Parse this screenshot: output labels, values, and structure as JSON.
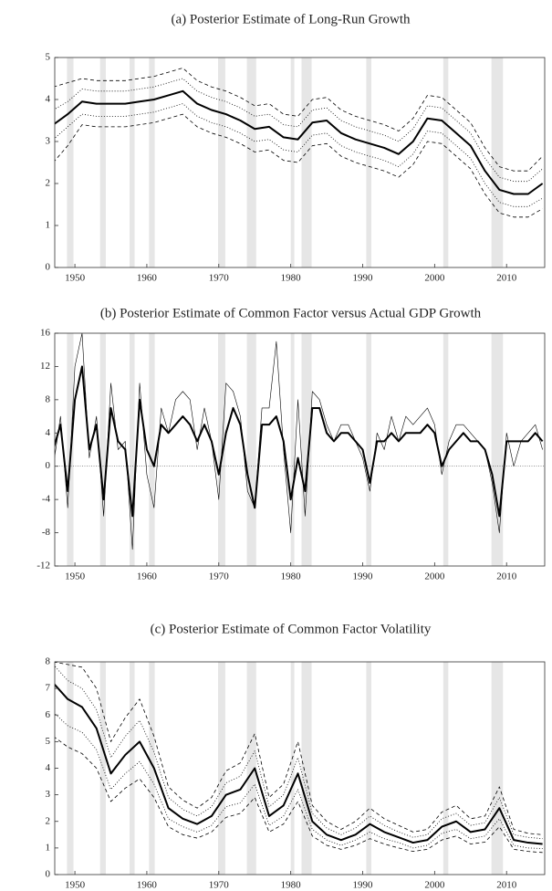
{
  "chart_data": [
    {
      "type": "line",
      "title": "(a) Posterior Estimate of Long-Run Growth",
      "x": [
        1947,
        1949,
        1951,
        1953,
        1955,
        1957,
        1959,
        1961,
        1963,
        1965,
        1967,
        1969,
        1971,
        1973,
        1975,
        1977,
        1979,
        1981,
        1983,
        1985,
        1987,
        1989,
        1991,
        1993,
        1995,
        1997,
        1999,
        2001,
        2003,
        2005,
        2007,
        2009,
        2011,
        2013,
        2015
      ],
      "xlim": [
        1947.2,
        2015.3
      ],
      "xticks": [
        1950,
        1960,
        1970,
        1980,
        1990,
        2000,
        2010
      ],
      "ylim": [
        0,
        5
      ],
      "yticks": [
        0,
        1,
        2,
        3,
        4,
        5
      ],
      "shaded_periods": [
        [
          1948.9,
          1949.8
        ],
        [
          1953.5,
          1954.3
        ],
        [
          1957.6,
          1958.3
        ],
        [
          1960.3,
          1961.1
        ],
        [
          1969.9,
          1970.9
        ],
        [
          1973.9,
          1975.2
        ],
        [
          1980.0,
          1980.5
        ],
        [
          1981.5,
          1982.9
        ],
        [
          1990.5,
          1991.2
        ],
        [
          2001.2,
          2001.9
        ],
        [
          2007.9,
          2009.5
        ]
      ],
      "shade_color": "#e6e6e6",
      "series": [
        {
          "color": "#000000",
          "style": "dashed",
          "width": 0.8,
          "values": [
            4.3,
            4.4,
            4.5,
            4.45,
            4.45,
            4.45,
            4.5,
            4.55,
            4.65,
            4.75,
            4.45,
            4.3,
            4.2,
            4.05,
            3.85,
            3.9,
            3.65,
            3.6,
            4.0,
            4.05,
            3.75,
            3.6,
            3.5,
            3.4,
            3.25,
            3.55,
            4.1,
            4.05,
            3.75,
            3.45,
            2.85,
            2.4,
            2.3,
            2.3,
            2.65
          ]
        },
        {
          "color": "#000000",
          "style": "dotted",
          "width": 0.8,
          "values": [
            3.75,
            3.95,
            4.25,
            4.2,
            4.2,
            4.2,
            4.25,
            4.3,
            4.4,
            4.5,
            4.2,
            4.05,
            3.95,
            3.8,
            3.6,
            3.65,
            3.4,
            3.35,
            3.75,
            3.8,
            3.5,
            3.35,
            3.25,
            3.15,
            3.0,
            3.3,
            3.85,
            3.8,
            3.5,
            3.2,
            2.6,
            2.15,
            2.05,
            2.05,
            2.35
          ]
        },
        {
          "color": "#000000",
          "style": "solid",
          "width": 2,
          "values": [
            3.4,
            3.65,
            3.95,
            3.9,
            3.9,
            3.9,
            3.95,
            4.0,
            4.1,
            4.2,
            3.9,
            3.75,
            3.65,
            3.5,
            3.3,
            3.35,
            3.1,
            3.05,
            3.45,
            3.5,
            3.2,
            3.05,
            2.95,
            2.85,
            2.7,
            3.0,
            3.55,
            3.5,
            3.2,
            2.9,
            2.3,
            1.85,
            1.75,
            1.75,
            2.0
          ]
        },
        {
          "color": "#000000",
          "style": "dotted",
          "width": 0.8,
          "values": [
            3.05,
            3.35,
            3.65,
            3.6,
            3.6,
            3.6,
            3.65,
            3.7,
            3.8,
            3.9,
            3.6,
            3.45,
            3.35,
            3.2,
            3.0,
            3.05,
            2.8,
            2.75,
            3.15,
            3.2,
            2.9,
            2.75,
            2.65,
            2.55,
            2.4,
            2.7,
            3.25,
            3.2,
            2.9,
            2.6,
            2.0,
            1.55,
            1.45,
            1.45,
            1.65
          ]
        },
        {
          "color": "#000000",
          "style": "dashed",
          "width": 0.8,
          "values": [
            2.5,
            2.9,
            3.4,
            3.35,
            3.35,
            3.35,
            3.4,
            3.45,
            3.55,
            3.65,
            3.35,
            3.2,
            3.1,
            2.95,
            2.75,
            2.8,
            2.55,
            2.5,
            2.9,
            2.95,
            2.65,
            2.5,
            2.4,
            2.3,
            2.15,
            2.45,
            3.0,
            2.95,
            2.65,
            2.35,
            1.75,
            1.3,
            1.2,
            1.2,
            1.4
          ]
        }
      ]
    },
    {
      "type": "line",
      "title": "(b) Posterior Estimate of Common Factor versus Actual GDP Growth",
      "x": [
        1947,
        1948,
        1949,
        1950,
        1951,
        1952,
        1953,
        1954,
        1955,
        1956,
        1957,
        1958,
        1959,
        1960,
        1961,
        1962,
        1963,
        1964,
        1965,
        1966,
        1967,
        1968,
        1969,
        1970,
        1971,
        1972,
        1973,
        1974,
        1975,
        1976,
        1977,
        1978,
        1979,
        1980,
        1981,
        1982,
        1983,
        1984,
        1985,
        1986,
        1987,
        1988,
        1989,
        1990,
        1991,
        1992,
        1993,
        1994,
        1995,
        1996,
        1997,
        1998,
        1999,
        2000,
        2001,
        2002,
        2003,
        2004,
        2005,
        2006,
        2007,
        2008,
        2009,
        2010,
        2011,
        2012,
        2013,
        2014,
        2015
      ],
      "xlim": [
        1947.2,
        2015.3
      ],
      "xticks": [
        1950,
        1960,
        1970,
        1980,
        1990,
        2000,
        2010
      ],
      "ylim": [
        -12,
        16
      ],
      "yticks": [
        -12,
        -8,
        -4,
        0,
        4,
        8,
        12,
        16
      ],
      "zero_line": true,
      "shaded_periods": [
        [
          1948.9,
          1949.8
        ],
        [
          1953.5,
          1954.3
        ],
        [
          1957.6,
          1958.3
        ],
        [
          1960.3,
          1961.1
        ],
        [
          1969.9,
          1970.9
        ],
        [
          1973.9,
          1975.2
        ],
        [
          1980.0,
          1980.5
        ],
        [
          1981.5,
          1982.9
        ],
        [
          1990.5,
          1991.2
        ],
        [
          2001.2,
          2001.9
        ],
        [
          2007.9,
          2009.5
        ]
      ],
      "shade_color": "#e6e6e6",
      "series": [
        {
          "color": "#000000",
          "style": "solid",
          "width": 0.6,
          "values": [
            0,
            6,
            -5,
            12,
            16,
            1,
            6,
            -6,
            10,
            2,
            3,
            -10,
            10,
            -1,
            -5,
            7,
            4,
            8,
            9,
            8,
            2,
            7,
            3,
            -4,
            10,
            9,
            6,
            -3,
            -5,
            7,
            7,
            15,
            2,
            -8,
            8,
            -6,
            9,
            8,
            5,
            3,
            5,
            5,
            3,
            1,
            -3,
            4,
            2,
            6,
            3,
            6,
            5,
            6,
            7,
            5,
            -1,
            3,
            5,
            5,
            4,
            3,
            2,
            -2,
            -8,
            4,
            0,
            3,
            4,
            5,
            2
          ]
        },
        {
          "color": "#000000",
          "style": "solid",
          "width": 2,
          "values": [
            2,
            5,
            -3,
            8,
            12,
            2,
            5,
            -4,
            7,
            3,
            2,
            -6,
            8,
            2,
            0,
            5,
            4,
            5,
            6,
            5,
            3,
            5,
            3,
            -1,
            4,
            7,
            5,
            -1,
            -5,
            5,
            5,
            6,
            3,
            -4,
            1,
            -3,
            7,
            7,
            4,
            3,
            4,
            4,
            3,
            2,
            -2,
            3,
            3,
            4,
            3,
            4,
            4,
            4,
            5,
            4,
            0,
            2,
            3,
            4,
            3,
            3,
            2,
            -1,
            -6,
            3,
            3,
            3,
            3,
            4,
            3
          ]
        }
      ]
    },
    {
      "type": "line",
      "title": "(c) Posterior Estimate of Common Factor Volatility",
      "x": [
        1947,
        1949,
        1951,
        1953,
        1955,
        1957,
        1959,
        1961,
        1963,
        1965,
        1967,
        1969,
        1971,
        1973,
        1975,
        1977,
        1979,
        1981,
        1983,
        1985,
        1987,
        1989,
        1991,
        1993,
        1995,
        1997,
        1999,
        2001,
        2003,
        2005,
        2007,
        2009,
        2011,
        2013,
        2015
      ],
      "xlim": [
        1947.2,
        2015.3
      ],
      "xticks": [
        1950,
        1960,
        1970,
        1980,
        1990,
        2000,
        2010
      ],
      "ylim": [
        0,
        8
      ],
      "yticks": [
        0,
        1,
        2,
        3,
        4,
        5,
        6,
        7,
        8
      ],
      "shaded_periods": [
        [
          1948.9,
          1949.8
        ],
        [
          1953.5,
          1954.3
        ],
        [
          1957.6,
          1958.3
        ],
        [
          1960.3,
          1961.1
        ],
        [
          1969.9,
          1970.9
        ],
        [
          1973.9,
          1975.2
        ],
        [
          1980.0,
          1980.5
        ],
        [
          1981.5,
          1982.9
        ],
        [
          1990.5,
          1991.2
        ],
        [
          2001.2,
          2001.9
        ],
        [
          2007.9,
          2009.5
        ]
      ],
      "shade_color": "#e6e6e6",
      "series": [
        {
          "color": "#000000",
          "style": "dashed",
          "width": 0.8,
          "values": [
            8.0,
            7.9,
            7.8,
            7.0,
            5.0,
            5.9,
            6.6,
            5.2,
            3.3,
            2.8,
            2.5,
            2.9,
            3.9,
            4.2,
            5.3,
            2.9,
            3.4,
            5.0,
            2.6,
            2.0,
            1.7,
            2.0,
            2.5,
            2.1,
            1.85,
            1.6,
            1.7,
            2.35,
            2.6,
            2.1,
            2.2,
            3.3,
            1.7,
            1.55,
            1.5
          ]
        },
        {
          "color": "#000000",
          "style": "dotted",
          "width": 0.8,
          "values": [
            7.9,
            7.3,
            7.0,
            6.2,
            4.4,
            5.2,
            5.8,
            4.6,
            2.9,
            2.45,
            2.2,
            2.55,
            3.45,
            3.7,
            4.65,
            2.55,
            3.0,
            4.4,
            2.3,
            1.75,
            1.5,
            1.75,
            2.2,
            1.85,
            1.6,
            1.4,
            1.5,
            2.1,
            2.3,
            1.85,
            1.95,
            2.9,
            1.5,
            1.4,
            1.35
          ]
        },
        {
          "color": "#000000",
          "style": "solid",
          "width": 2,
          "values": [
            7.2,
            6.6,
            6.3,
            5.5,
            3.8,
            4.5,
            5.0,
            4.0,
            2.5,
            2.1,
            1.9,
            2.2,
            3.0,
            3.2,
            4.0,
            2.2,
            2.6,
            3.8,
            2.0,
            1.5,
            1.3,
            1.5,
            1.9,
            1.6,
            1.4,
            1.2,
            1.3,
            1.8,
            2.0,
            1.6,
            1.7,
            2.5,
            1.3,
            1.2,
            1.15
          ]
        },
        {
          "color": "#000000",
          "style": "dotted",
          "width": 0.8,
          "values": [
            6.1,
            5.6,
            5.35,
            4.7,
            3.2,
            3.8,
            4.25,
            3.4,
            2.1,
            1.8,
            1.6,
            1.85,
            2.55,
            2.7,
            3.4,
            1.85,
            2.2,
            3.2,
            1.7,
            1.3,
            1.1,
            1.3,
            1.6,
            1.35,
            1.2,
            1.0,
            1.1,
            1.55,
            1.7,
            1.35,
            1.45,
            2.1,
            1.1,
            1.0,
            0.98
          ]
        },
        {
          "color": "#000000",
          "style": "dashed",
          "width": 0.8,
          "values": [
            5.2,
            4.8,
            4.55,
            4.0,
            2.75,
            3.25,
            3.6,
            2.9,
            1.8,
            1.5,
            1.37,
            1.6,
            2.15,
            2.3,
            2.9,
            1.6,
            1.9,
            2.75,
            1.45,
            1.1,
            0.95,
            1.1,
            1.35,
            1.15,
            1.0,
            0.87,
            0.95,
            1.3,
            1.45,
            1.15,
            1.22,
            1.8,
            0.95,
            0.87,
            0.83
          ]
        }
      ]
    }
  ]
}
